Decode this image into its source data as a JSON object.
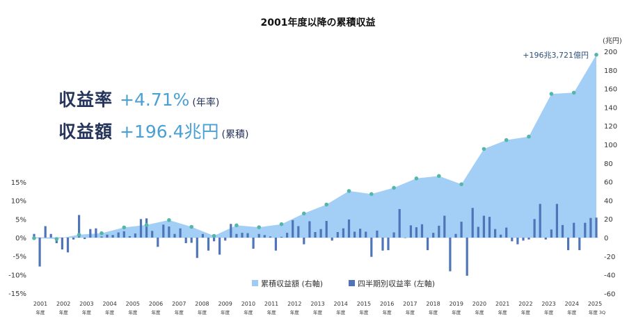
{
  "chart_data": {
    "type": "bar+area",
    "title": "2001年度以降の累積収益",
    "headline": {
      "rate_label": "収益率",
      "rate_value": "+4.71%",
      "rate_note": "(年率)",
      "amount_label": "収益額",
      "amount_value": "+196.4兆円",
      "amount_note": "(累積)"
    },
    "annotation": "+196兆3,721億円",
    "right_axis_unit": "(兆円)",
    "left_axis": {
      "ticks": [
        "15%",
        "10%",
        "5%",
        "0%",
        "-5%",
        "-10%",
        "-15%"
      ],
      "ylim": [
        -15,
        15
      ]
    },
    "right_axis": {
      "ticks": [
        "200",
        "180",
        "160",
        "140",
        "120",
        "100",
        "80",
        "60",
        "40",
        "20",
        "0",
        "-20",
        "-40",
        "-60"
      ],
      "ylim": [
        -60,
        200
      ]
    },
    "x_labels": [
      {
        "year": "2001",
        "sub": "年度"
      },
      {
        "year": "2002",
        "sub": "年度"
      },
      {
        "year": "2003",
        "sub": "年度"
      },
      {
        "year": "2004",
        "sub": "年度"
      },
      {
        "year": "2005",
        "sub": "年度"
      },
      {
        "year": "2006",
        "sub": "年度"
      },
      {
        "year": "2007",
        "sub": "年度"
      },
      {
        "year": "2008",
        "sub": "年度"
      },
      {
        "year": "2009",
        "sub": "年度"
      },
      {
        "year": "2010",
        "sub": "年度"
      },
      {
        "year": "2011",
        "sub": "年度"
      },
      {
        "year": "2012",
        "sub": "年度"
      },
      {
        "year": "2013",
        "sub": "年度"
      },
      {
        "year": "2014",
        "sub": "年度"
      },
      {
        "year": "2015",
        "sub": "年度"
      },
      {
        "year": "2016",
        "sub": "年度"
      },
      {
        "year": "2017",
        "sub": "年度"
      },
      {
        "year": "2018",
        "sub": "年度"
      },
      {
        "year": "2019",
        "sub": "年度"
      },
      {
        "year": "2020",
        "sub": "年度"
      },
      {
        "year": "2021",
        "sub": "年度"
      },
      {
        "year": "2022",
        "sub": "年度"
      },
      {
        "year": "2023",
        "sub": "年度"
      },
      {
        "year": "2024",
        "sub": "年度"
      },
      {
        "year": "2025",
        "sub": "年度 3Q"
      }
    ],
    "legend": [
      "累積収益額 (右軸)",
      "四半期別収益率 (左軸)"
    ],
    "series": [
      {
        "name": "累積収益額 (右軸)",
        "type": "area",
        "axis": "right",
        "color": "#9ecbf5",
        "values": [
          -0.6,
          -1.5,
          3.1,
          4.7,
          10.9,
          13.6,
          18.8,
          11.6,
          1.9,
          13.2,
          11.1,
          14.4,
          25.9,
          35.5,
          50.1,
          46.8,
          53.5,
          63.6,
          66.2,
          57.3,
          95.2,
          104.8,
          108.5,
          154.4,
          155.7,
          196.4
        ]
      },
      {
        "name": "四半期別収益率 (左軸)",
        "type": "bar",
        "axis": "left",
        "color": "#4f74b8",
        "values": [
          1.0,
          -7.8,
          3.1,
          1.0,
          -1.5,
          -3.2,
          -4.0,
          -0.5,
          6.1,
          -0.4,
          2.3,
          2.5,
          0.3,
          0.8,
          0.7,
          1.4,
          1.7,
          0.4,
          1.1,
          5.0,
          5.2,
          1.8,
          -2.5,
          3.5,
          3.0,
          1.0,
          2.5,
          -1.5,
          -1.4,
          -5.5,
          1.0,
          -3.5,
          -1.0,
          -4.6,
          -0.8,
          3.7,
          1.0,
          1.3,
          1.2,
          -3.0,
          1.0,
          0.7,
          0.3,
          -3.5,
          0.2,
          1.3,
          4.7,
          3.1,
          -1.8,
          4.4,
          1.5,
          2.3,
          4.5,
          -0.8,
          1.5,
          2.5,
          4.9,
          1.6,
          2.4,
          1.6,
          -5.2,
          1.9,
          -3.5,
          -3.4,
          1.4,
          7.7,
          -0.1,
          3.3,
          2.8,
          3.6,
          -3.4,
          1.3,
          3.2,
          5.9,
          -9.1,
          1.0,
          4.3,
          -10.3,
          8.0,
          2.9,
          5.9,
          5.6,
          2.3,
          0.8,
          2.7,
          -1.0,
          -1.8,
          -0.8,
          -0.5,
          5.0,
          9.1,
          -0.5,
          2.2,
          9.1,
          3.4,
          -3.4,
          4.0,
          -3.4,
          4.0,
          5.3,
          5.4
        ]
      }
    ],
    "markers_color": "#53b7a8"
  }
}
